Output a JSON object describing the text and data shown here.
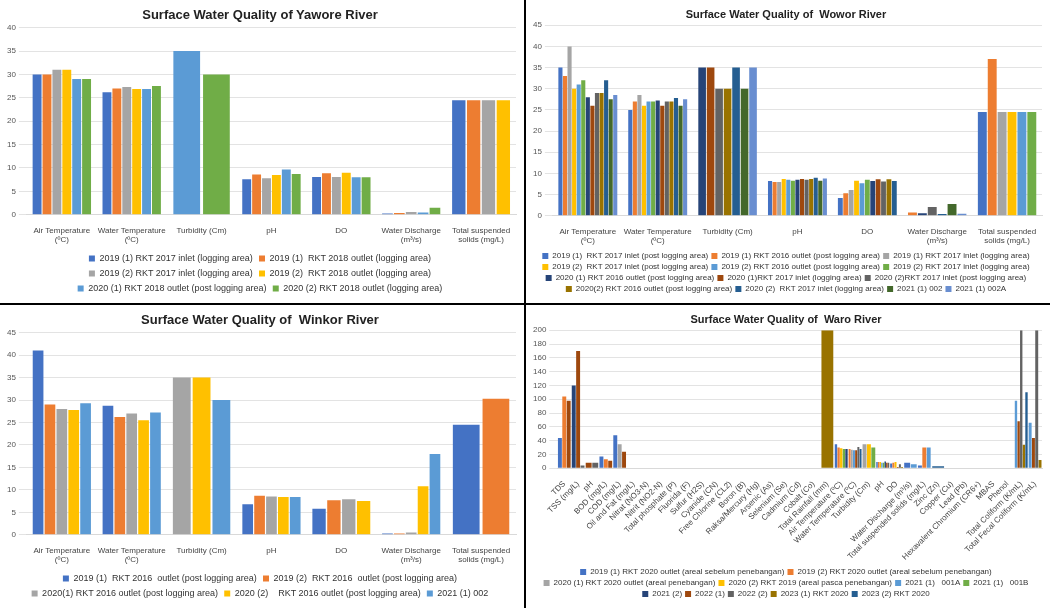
{
  "chart_data": [
    {
      "type": "bar",
      "title": "Surface Water Quality of Yawore River",
      "categories": [
        "Air Temperature (ºC)",
        "Water Temperature (ºC)",
        "Turbidity (Cm)",
        "pH",
        "DO",
        "Water Discharge (m³/s)",
        "Total suspended solids (mg/L)"
      ],
      "ylim": [
        0,
        40
      ],
      "yticks": [
        0,
        5,
        10,
        15,
        20,
        25,
        30,
        35,
        40
      ],
      "grid": "y",
      "legend": "bottom",
      "series": [
        {
          "name": "2019 (1) RKT 2017 inlet (logging area)",
          "color": "#4472c4",
          "values": [
            30,
            26.2,
            null,
            7.6,
            8.1,
            0.3,
            24.5
          ]
        },
        {
          "name": "2019 (1)  RKT 2018 outlet (logging area)",
          "color": "#ed7d31",
          "values": [
            30,
            27,
            null,
            8.6,
            8.9,
            0.4,
            24.5
          ]
        },
        {
          "name": "2019 (2) RKT 2017 inlet (logging area)",
          "color": "#a5a5a5",
          "values": [
            31,
            27.3,
            null,
            7.8,
            8.1,
            0.6,
            24.5
          ]
        },
        {
          "name": "2019 (2)  RKT 2018 outlet (logging area)",
          "color": "#ffc000",
          "values": [
            31,
            26.9,
            null,
            8.5,
            9,
            null,
            24.5
          ]
        },
        {
          "name": "2020 (1) RKT 2018 outlet (post logging area)",
          "color": "#5b9bd5",
          "values": [
            29,
            26.9,
            35,
            9.7,
            8,
            0.5,
            null
          ]
        },
        {
          "name": "2020 (2) RKT 2018 outlet (logging area)",
          "color": "#70ad47",
          "values": [
            29,
            27.5,
            30,
            8.7,
            8,
            1.5,
            null
          ]
        }
      ]
    },
    {
      "type": "bar",
      "title": "Surface Water Quality of  Wowor River",
      "categories": [
        "Air Temperature (ºC)",
        "Water Temperature (ºC)",
        "Turbidity (Cm)",
        "pH",
        "DO",
        "Water Discharge (m³/s)",
        "Total suspended solids (mg/L)"
      ],
      "ylim": [
        0,
        45
      ],
      "yticks": [
        0,
        5,
        10,
        15,
        20,
        25,
        30,
        35,
        40,
        45
      ],
      "grid": "y",
      "legend": "bottom",
      "series": [
        {
          "name": "2019 (1)  RKT 2017 inlet (post logging area)",
          "color": "#4472c4",
          "values": [
            35,
            25,
            null,
            8.2,
            4.2,
            null,
            24.5
          ]
        },
        {
          "name": "2019 (1) RKT 2016 outlet (post logging area)",
          "color": "#ed7d31",
          "values": [
            33,
            27,
            null,
            8,
            5.3,
            0.8,
            37
          ]
        },
        {
          "name": "2019 (1) RKT 2017 inlet (logging area)",
          "color": "#a5a5a5",
          "values": [
            40,
            28.5,
            null,
            8,
            6.1,
            null,
            24.5
          ]
        },
        {
          "name": "2019 (2)  RKT 2017 inlet (post logging area)",
          "color": "#ffc000",
          "values": [
            30,
            26,
            null,
            8.7,
            8.3,
            null,
            24.5
          ]
        },
        {
          "name": "2019 (2) RKT 2016 outlet (post logging area)",
          "color": "#5b9bd5",
          "values": [
            31,
            27,
            null,
            8.5,
            7.7,
            null,
            24.5
          ]
        },
        {
          "name": "2019 (2) RKT 2017 inlet (logging area)",
          "color": "#70ad47",
          "values": [
            32,
            27,
            null,
            8.3,
            8.5,
            null,
            24.5
          ]
        },
        {
          "name": "2020 (1) RKT 2016 outlet (post logging area)",
          "color": "#264478",
          "values": [
            28,
            27.2,
            35,
            8.5,
            8.2,
            0.6,
            null
          ]
        },
        {
          "name": "2020 (1)RKT 2017 inlet (logging area)",
          "color": "#9e480e",
          "values": [
            26,
            26,
            35,
            8.7,
            8.6,
            null,
            null
          ]
        },
        {
          "name": "2020 (2)RKT 2017 inlet (post logging area)",
          "color": "#636363",
          "values": [
            29,
            27,
            30,
            8.5,
            8.1,
            2.1,
            null
          ]
        },
        {
          "name": "2020(2) RKT 2016 outlet (post logging area)",
          "color": "#997300",
          "values": [
            29,
            27,
            30,
            8.7,
            8.6,
            null,
            null
          ]
        },
        {
          "name": "2020 (2)  RKT 2017 inlet (logging area)",
          "color": "#255e91",
          "values": [
            32,
            27.8,
            35,
            9,
            8.2,
            0.4,
            null
          ]
        },
        {
          "name": "2021 (1) 002",
          "color": "#43682b",
          "values": [
            27.5,
            26,
            30,
            8.3,
            null,
            2.8,
            null
          ]
        },
        {
          "name": "2021 (1) 002A",
          "color": "#698ed0",
          "values": [
            28.5,
            27.5,
            35,
            8.8,
            null,
            0.5,
            null
          ]
        }
      ]
    },
    {
      "type": "bar",
      "title": "Surface Water Quality of  Winkor River",
      "categories": [
        "Air Temperature (ºC)",
        "Water Temperature (ºC)",
        "Turbidity (Cm)",
        "pH",
        "DO",
        "Water Discharge (m³/s)",
        "Total suspended solids (mg/L)"
      ],
      "ylim": [
        0,
        45
      ],
      "yticks": [
        0,
        5,
        10,
        15,
        20,
        25,
        30,
        35,
        40,
        45
      ],
      "grid": "y",
      "legend": "bottom",
      "series": [
        {
          "name": "2019 (1)  RKT 2016  outlet (post logging area)",
          "color": "#4472c4",
          "values": [
            41,
            28.7,
            null,
            6.8,
            5.8,
            0.3,
            24.5
          ]
        },
        {
          "name": "2019 (2)  RKT 2016  outlet (post logging area)",
          "color": "#ed7d31",
          "values": [
            29,
            26.2,
            null,
            8.7,
            7.7,
            0.3,
            30.3
          ]
        },
        {
          "name": "2020(1) RKT 2016 outlet (post logging area)",
          "color": "#a5a5a5",
          "values": [
            28,
            27,
            35,
            8.5,
            7.9,
            0.5,
            null
          ]
        },
        {
          "name": "2020 (2)    RKT 2016 outlet (post logging area)",
          "color": "#ffc000",
          "values": [
            27.8,
            25.5,
            35,
            8.4,
            7.5,
            10.8,
            null
          ]
        },
        {
          "name": "2021 (1) 002",
          "color": "#5b9bd5",
          "values": [
            29.3,
            27.2,
            30,
            8.4,
            null,
            18,
            null
          ]
        }
      ]
    },
    {
      "type": "bar",
      "title": "Surface Water Quality of  Waro River",
      "categories": [
        "TDS",
        "TSS (mg/L)",
        "pH",
        "BOD (mg/L)",
        "COD (mg/L)",
        "Oil and Fat (mg/L)",
        "Nitrat (NO3-N)",
        "Nitrit (NO2-N)",
        "Total phosphate (P)",
        "Fluorida (F)",
        "Sulfur (H2S)",
        "Cyanide (CN)",
        "Free Chlorine (CL2)",
        "Boron (B)",
        "Raksa/Mercury (Hg)",
        "Arsenic (As)",
        "Selenium (Se)",
        "Cadmium (Cd)",
        "Cobalt (Co)",
        "Total Rainfall (mm)",
        "Air Temperature (ºC)",
        "Water Temperature (ºC)",
        "Turbidity (Cm)",
        "pH",
        "DO",
        "Water Discharge (m³/s)",
        "Total suspended solids (mg/L)",
        "Zinc (Zn)",
        "Copper (Cu)",
        "Lead (Pb)",
        "Hexavalent Chromium (CR6+)",
        "MBAS",
        "Phenol",
        "Total Coliform (K/mL)",
        "Total Fecal Coliform (K/mL)"
      ],
      "ylim": [
        0,
        200
      ],
      "yticks": [
        0,
        20,
        40,
        60,
        80,
        100,
        120,
        140,
        160,
        180,
        200
      ],
      "grid": "y",
      "legend": "bottom",
      "series": [
        {
          "name": "2019 (1) RKT 2020 outlet (areal sebelum penebangan)",
          "color": "#4472c4",
          "values": [
            44,
            null,
            null,
            17,
            48,
            null,
            null,
            null,
            null,
            null,
            null,
            null,
            null,
            null,
            null,
            null,
            null,
            null,
            null,
            null,
            35,
            null,
            null,
            9,
            7,
            8,
            4,
            null,
            null,
            null,
            null,
            null,
            null,
            null,
            null
          ]
        },
        {
          "name": "2019 (2) RKT 2020 outlet (areal sebelum penebangan)",
          "color": "#ed7d31",
          "values": [
            104,
            null,
            null,
            13,
            null,
            null,
            null,
            null,
            null,
            null,
            null,
            null,
            null,
            null,
            null,
            null,
            null,
            null,
            null,
            null,
            30,
            28,
            null,
            9,
            8,
            null,
            30,
            null,
            null,
            null,
            null,
            null,
            null,
            null,
            null
          ]
        },
        {
          "name": "2020 (1) RKT 2020 outlet (areal penebangan)",
          "color": "#a5a5a5",
          "values": [
            null,
            null,
            null,
            null,
            35,
            null,
            null,
            null,
            null,
            null,
            null,
            null,
            null,
            null,
            null,
            null,
            null,
            null,
            null,
            null,
            null,
            27,
            35,
            null,
            null,
            null,
            null,
            null,
            null,
            null,
            null,
            null,
            null,
            null,
            null
          ]
        },
        {
          "name": "2020 (2) RKT 2019 (areal pasca penebangan)",
          "color": "#ffc000",
          "values": [
            null,
            null,
            null,
            null,
            null,
            null,
            null,
            null,
            null,
            null,
            null,
            null,
            null,
            null,
            null,
            null,
            null,
            null,
            null,
            null,
            29,
            null,
            35,
            9,
            9,
            null,
            null,
            null,
            null,
            null,
            null,
            null,
            null,
            null,
            null
          ]
        },
        {
          "name": "2021 (1)   001A",
          "color": "#5b9bd5",
          "values": [
            null,
            null,
            null,
            null,
            null,
            null,
            null,
            null,
            null,
            null,
            null,
            null,
            null,
            null,
            null,
            null,
            null,
            null,
            null,
            null,
            null,
            26,
            null,
            8,
            null,
            6,
            30,
            null,
            null,
            null,
            null,
            null,
            null,
            98,
            66
          ]
        },
        {
          "name": "2021 (1)   001B",
          "color": "#70ad47",
          "values": [
            null,
            null,
            null,
            null,
            null,
            null,
            null,
            null,
            null,
            null,
            null,
            null,
            null,
            null,
            null,
            null,
            null,
            null,
            null,
            null,
            28,
            null,
            30,
            8,
            null,
            null,
            null,
            null,
            null,
            null,
            null,
            null,
            null,
            null,
            null
          ]
        },
        {
          "name": "2021 (2)",
          "color": "#264478",
          "values": [
            null,
            120,
            null,
            null,
            null,
            null,
            null,
            null,
            null,
            null,
            null,
            null,
            null,
            null,
            null,
            null,
            null,
            null,
            null,
            null,
            28,
            null,
            null,
            10,
            null,
            null,
            null,
            null,
            null,
            null,
            null,
            null,
            null,
            null,
            null
          ]
        },
        {
          "name": "2022 (1)",
          "color": "#9e480e",
          "values": [
            98,
            170,
            8,
            11,
            24,
            null,
            null,
            null,
            null,
            null,
            null,
            null,
            null,
            null,
            null,
            null,
            null,
            null,
            null,
            null,
            null,
            26,
            null,
            8,
            2,
            null,
            null,
            null,
            null,
            null,
            null,
            null,
            null,
            68,
            44
          ]
        },
        {
          "name": "2022 (2)",
          "color": "#636363",
          "values": [
            null,
            4,
            8,
            null,
            null,
            null,
            null,
            null,
            null,
            null,
            null,
            null,
            null,
            null,
            null,
            null,
            null,
            null,
            null,
            null,
            null,
            31,
            null,
            8,
            6,
            null,
            null,
            null,
            null,
            null,
            null,
            null,
            null,
            200,
            200
          ]
        },
        {
          "name": "2023 (1) RKT 2020",
          "color": "#997300",
          "values": [
            null,
            null,
            null,
            null,
            null,
            null,
            null,
            null,
            null,
            null,
            null,
            null,
            null,
            null,
            null,
            null,
            null,
            null,
            null,
            200,
            null,
            null,
            null,
            null,
            2,
            null,
            null,
            null,
            null,
            null,
            null,
            null,
            null,
            34,
            12
          ]
        },
        {
          "name": "2023 (2) RKT 2020",
          "color": "#255e91",
          "values": [
            null,
            null,
            null,
            null,
            null,
            null,
            null,
            null,
            null,
            null,
            null,
            null,
            null,
            null,
            null,
            null,
            null,
            null,
            null,
            null,
            null,
            28,
            null,
            null,
            null,
            null,
            null,
            3,
            null,
            null,
            null,
            null,
            null,
            110,
            null
          ]
        }
      ]
    }
  ]
}
